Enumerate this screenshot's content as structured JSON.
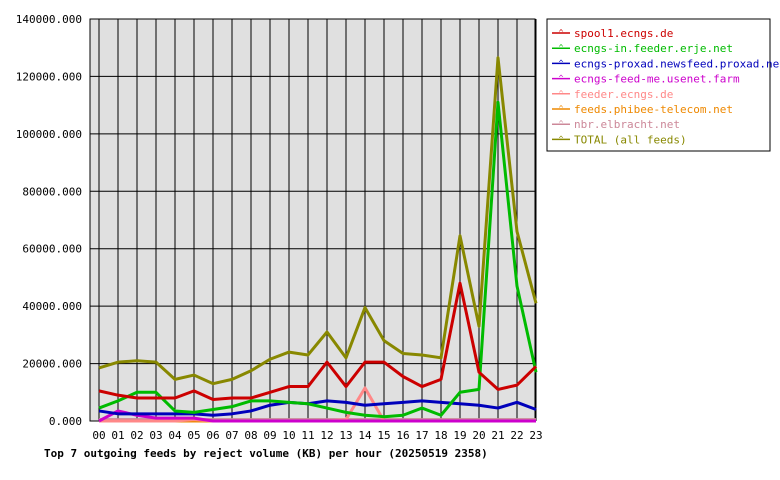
{
  "chart_data": {
    "type": "line",
    "title": "Top 7 outgoing feeds by reject volume (KB) per hour (20250519 2358)",
    "xlabel": "",
    "ylabel": "",
    "categories": [
      "00",
      "01",
      "02",
      "03",
      "04",
      "05",
      "06",
      "07",
      "08",
      "09",
      "10",
      "11",
      "12",
      "13",
      "14",
      "15",
      "16",
      "17",
      "18",
      "19",
      "20",
      "21",
      "22",
      "23"
    ],
    "ylim": [
      0,
      140000
    ],
    "yticks": [
      "0.000",
      "20000.000",
      "40000.000",
      "60000.000",
      "80000.000",
      "100000.000",
      "120000.000",
      "140000.000"
    ],
    "ytick_values": [
      0,
      20000,
      40000,
      60000,
      80000,
      100000,
      120000,
      140000
    ],
    "grid": true,
    "legend_position": "right",
    "series": [
      {
        "name": "spool1.ecngs.de",
        "color": "#cc0000",
        "values": [
          10500,
          9000,
          8000,
          8000,
          8000,
          10500,
          7500,
          8000,
          8000,
          10000,
          12000,
          12000,
          20500,
          12000,
          20500,
          20500,
          15500,
          12000,
          14500,
          48000,
          17000,
          11000,
          12500,
          19000
        ]
      },
      {
        "name": "ecngs-in.feeder.erje.net",
        "color": "#00bb00",
        "values": [
          4500,
          7000,
          10000,
          10000,
          3500,
          3000,
          4000,
          5000,
          7000,
          7000,
          6500,
          6000,
          4500,
          3000,
          2000,
          1500,
          2000,
          4500,
          2000,
          10000,
          11000,
          111000,
          47000,
          17000
        ]
      },
      {
        "name": "ecngs-proxad.newsfeed.proxad.net",
        "color": "#0000bb",
        "values": [
          3500,
          2500,
          2500,
          2500,
          2500,
          2500,
          2000,
          2500,
          3500,
          5500,
          6500,
          6000,
          7000,
          6500,
          5500,
          6000,
          6500,
          7000,
          6500,
          6000,
          5500,
          4500,
          6500,
          4000
        ]
      },
      {
        "name": "ecngs-feed-me.usenet.farm",
        "color": "#cc00cc",
        "values": [
          0,
          3500,
          2000,
          1000,
          1000,
          1000,
          0,
          0,
          0,
          0,
          0,
          0,
          0,
          0,
          0,
          0,
          0,
          0,
          0,
          0,
          0,
          0,
          0,
          0
        ]
      },
      {
        "name": "feeder.ecngs.de",
        "color": "#ff8888",
        "values": [
          0,
          0,
          0,
          0,
          0,
          500,
          0,
          0,
          0,
          0,
          0,
          0,
          0,
          500,
          11500,
          0,
          0,
          0,
          0,
          0,
          0,
          0,
          0,
          0
        ]
      },
      {
        "name": "feeds.phibee-telecom.net",
        "color": "#ee8800",
        "values": [
          0,
          0,
          0,
          0,
          0,
          0,
          0,
          0,
          0,
          0,
          0,
          0,
          0,
          0,
          0,
          0,
          0,
          0,
          0,
          0,
          0,
          0,
          0,
          0
        ]
      },
      {
        "name": "nbr.elbracht.net",
        "color": "#cc8899",
        "values": [
          500,
          500,
          500,
          500,
          500,
          500,
          500,
          500,
          500,
          500,
          500,
          500,
          500,
          500,
          500,
          500,
          500,
          500,
          500,
          500,
          500,
          500,
          500,
          500
        ]
      },
      {
        "name": "TOTAL (all feeds)",
        "color": "#888800",
        "values": [
          18500,
          20500,
          21000,
          20500,
          14500,
          16000,
          13000,
          14500,
          17500,
          21500,
          24000,
          23000,
          31000,
          22000,
          39500,
          28000,
          23500,
          23000,
          22000,
          64500,
          33000,
          126500,
          66000,
          41000
        ]
      }
    ]
  }
}
